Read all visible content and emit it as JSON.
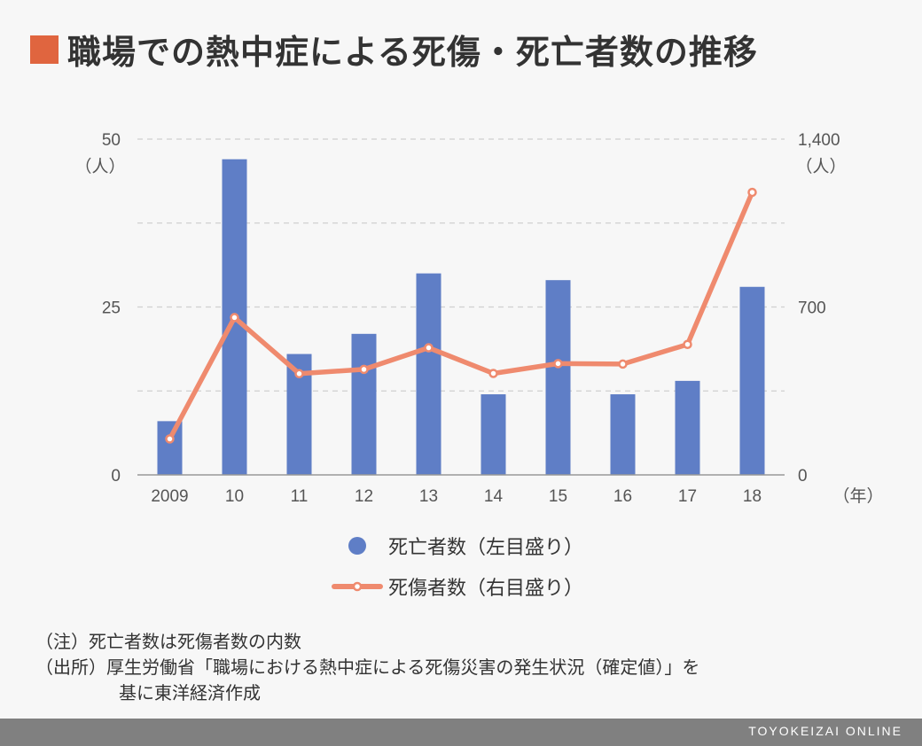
{
  "title": "職場での熱中症による死傷・死亡者数の推移",
  "colors": {
    "title_square": "#e0653f",
    "bar": "#5f7ec6",
    "line": "#ef8a6e",
    "footer": "#808080"
  },
  "chart_data": {
    "type": "bar",
    "categories": [
      "2009",
      "10",
      "11",
      "12",
      "13",
      "14",
      "15",
      "16",
      "17",
      "18"
    ],
    "x_unit": "（年）",
    "series": [
      {
        "name": "死亡者数（左目盛り）",
        "type": "bar",
        "axis": "left",
        "values": [
          8,
          47,
          18,
          21,
          30,
          12,
          29,
          12,
          14,
          28
        ]
      },
      {
        "name": "死傷者数（右目盛り）",
        "type": "line",
        "axis": "right",
        "values": [
          150,
          656,
          422,
          440,
          530,
          423,
          464,
          462,
          544,
          1178
        ]
      }
    ],
    "left_axis": {
      "ylim": [
        0,
        50
      ],
      "ticks": [
        "0",
        "25",
        "50"
      ],
      "unit": "（人）"
    },
    "right_axis": {
      "ylim": [
        0,
        1400
      ],
      "ticks": [
        "0",
        "700",
        "1,400"
      ],
      "unit": "（人）"
    },
    "grid": true,
    "legend": "bottom"
  },
  "legend": {
    "deaths": "死亡者数（左目盛り）",
    "casualties": "死傷者数（右目盛り）"
  },
  "notes": {
    "note": "（注）死亡者数は死傷者数の内数",
    "source_line1": "（出所）厚生労働省「職場における熱中症による死傷災害の発生状況（確定値）」を",
    "source_line2": "基に東洋経済作成"
  },
  "footer": "TOYOKEIZAI ONLINE"
}
